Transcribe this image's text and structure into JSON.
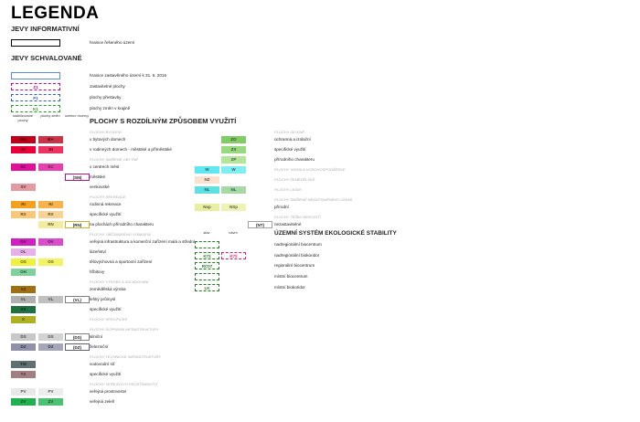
{
  "title": "LEGENDA",
  "informative": {
    "heading": "JEVY INFORMATIVNÍ",
    "items": [
      {
        "label": "hranice řešeného území",
        "color": "#000000",
        "border": "solid"
      }
    ]
  },
  "approved": {
    "heading": "JEVY SCHVALOVANÉ",
    "items": [
      {
        "label": "hranice zastavěného území k 31. 5. 2016",
        "color": "#5b8fd6",
        "border": "solid"
      },
      {
        "code": "Z1",
        "label": "zastavitelné plochy",
        "color": "#d0008a",
        "border": "dashed"
      },
      {
        "code": "P1",
        "label": "plochy přestavby",
        "color": "#3060d0",
        "border": "dashed"
      },
      {
        "code": "K1",
        "label": "plochy změn v krajině",
        "color": "#20a020",
        "border": "dashed"
      }
    ]
  },
  "land_use": {
    "title": "PLOCHY S ROZDÍLNÝM ZPŮSOBEM VYUŽITÍ",
    "columns": [
      "stabilizované plochy",
      "plochy změn",
      "územní rezervy"
    ],
    "left": [
      {
        "heading": "PLOCHY BYDLENÍ"
      },
      {
        "label": "v bytových domech",
        "swatches": [
          {
            "code": "BH",
            "color": "#c0001a"
          },
          {
            "code": "BH",
            "color": "#c0001a"
          },
          null
        ]
      },
      {
        "label": "v rodinných domech - městské a příměstské",
        "swatches": [
          {
            "code": "BI",
            "color": "#e8003a"
          },
          {
            "code": "BI",
            "color": "#e8003a"
          },
          null
        ]
      },
      {
        "heading": "PLOCHY SMÍŠENÉ OBYTNÉ"
      },
      {
        "label": "v centrech měst",
        "swatches": [
          {
            "code": "SC",
            "color": "#e0109a"
          },
          {
            "code": "SC",
            "color": "#e0109a"
          },
          null
        ]
      },
      {
        "label": "městské",
        "swatches": [
          null,
          null,
          {
            "code": "(SM)",
            "color": "#c01080"
          }
        ]
      },
      {
        "label": "venkovské",
        "swatches": [
          {
            "code": "SV",
            "color": "#e39aa0"
          },
          null,
          null
        ]
      },
      {
        "heading": "PLOCHY REKREACE"
      },
      {
        "label": "rodinná rekreace",
        "swatches": [
          {
            "code": "RI",
            "color": "#f5a020"
          },
          {
            "code": "RI",
            "color": "#f5a020"
          },
          null
        ]
      },
      {
        "label": "specifické využití",
        "swatches": [
          {
            "code": "RX",
            "color": "#f8c878"
          },
          {
            "code": "RX",
            "color": "#f8c878"
          },
          null
        ]
      },
      {
        "label": "na plochách přírodního charakteru",
        "swatches": [
          null,
          {
            "code": "RN",
            "color": "#f2e48a"
          },
          {
            "code": "(RN)",
            "color": "#c8b030"
          }
        ]
      },
      {
        "heading": "PLOCHY OBČANSKÉHO VYBAVENÍ"
      },
      {
        "label": "veřejná infrastruktura a komerční zařízení malá a střední",
        "swatches": [
          {
            "code": "OV",
            "color": "#d020c0"
          },
          {
            "code": "OV",
            "color": "#d020c0"
          },
          null
        ]
      },
      {
        "label": "lázeňství",
        "swatches": [
          {
            "code": "OL",
            "color": "#e8b0e8"
          },
          null,
          null
        ]
      },
      {
        "label": "tělovýchovná a sportovní zařízení",
        "swatches": [
          {
            "code": "OS",
            "color": "#f0f040"
          },
          {
            "code": "OS",
            "color": "#f0f040"
          },
          null
        ]
      },
      {
        "label": "hřbitovy",
        "swatches": [
          {
            "code": "OH",
            "color": "#80d0a0"
          },
          null,
          null
        ]
      },
      {
        "heading": "PLOCHY VÝROBY A SKLADOVÁNÍ"
      },
      {
        "label": "zemědělská výroba",
        "swatches": [
          {
            "code": "VZ",
            "color": "#a07010"
          },
          null,
          null
        ]
      },
      {
        "label": "lehký průmysl",
        "swatches": [
          {
            "code": "VL",
            "color": "#b0b0b0"
          },
          {
            "code": "VL",
            "color": "#b0b0b0"
          },
          {
            "code": "(VL)",
            "color": "#808080"
          }
        ]
      },
      {
        "label": "specifické využití",
        "swatches": [
          {
            "code": "VX",
            "color": "#207040"
          },
          null,
          null
        ]
      },
      {
        "heading": "PLOCHY SPECIFICKÉ",
        "swatches": [
          {
            "code": "X",
            "color": "#b0b020"
          },
          null,
          null
        ]
      },
      {
        "heading": "PLOCHY DOPRAVNÍ INFRASTRUKTURY"
      },
      {
        "label": "silniční",
        "swatches": [
          {
            "code": "DS",
            "color": "#c8c8c8"
          },
          {
            "code": "DS",
            "color": "#c8c8c8"
          },
          {
            "code": "(DS)",
            "color": "#808080"
          }
        ]
      },
      {
        "label": "železniční",
        "swatches": [
          {
            "code": "DZ",
            "color": "#9090a8"
          },
          {
            "code": "DZ",
            "color": "#9090a8"
          },
          {
            "code": "(DZ)",
            "color": "#606070"
          }
        ]
      },
      {
        "heading": "PLOCHY TECHNICKÉ INFRASTRUKTURY"
      },
      {
        "label": "vodovodní síť",
        "swatches": [
          {
            "code": "TW",
            "color": "#607070"
          },
          null,
          null
        ]
      },
      {
        "label": "specifické využití",
        "swatches": [
          {
            "code": "TX",
            "color": "#a08080"
          },
          null,
          null
        ]
      },
      {
        "heading": "PLOCHY VEŘEJNÝCH PROSTRANSTVÍ"
      },
      {
        "label": "veřejná prostranství",
        "swatches": [
          {
            "code": "PV",
            "color": "#e8e8e8"
          },
          {
            "code": "PV",
            "color": "#e8e8e8"
          },
          null
        ]
      },
      {
        "label": "veřejná zeleň",
        "swatches": [
          {
            "code": "ZV",
            "color": "#20b050"
          },
          {
            "code": "ZV",
            "color": "#20b050"
          },
          null
        ]
      }
    ],
    "right": [
      {
        "heading": "PLOCHY ZELENĚ"
      },
      {
        "label": "ochranná a izolační",
        "swatches": [
          null,
          {
            "code": "ZO",
            "color": "#60c040"
          },
          null
        ]
      },
      {
        "label": "specifické využití",
        "swatches": [
          null,
          {
            "code": "ZX",
            "color": "#80d060"
          },
          null
        ]
      },
      {
        "label": "přírodního charakteru",
        "swatches": [
          null,
          {
            "code": "ZP",
            "color": "#a0e080"
          },
          null
        ]
      },
      {
        "heading": "PLOCHY VODNÍ A VODOHOSPODÁŘSKÉ",
        "swatches": [
          {
            "code": "W",
            "color": "#60e8f0"
          },
          {
            "code": "W",
            "color": "#60e8f0"
          },
          null
        ]
      },
      {
        "heading": "PLOCHY ZEMĚDĚLSKÉ",
        "swatches": [
          {
            "code": "NZ",
            "color": "#fce0d0"
          },
          null,
          null
        ]
      },
      {
        "heading": "PLOCHY LESNÍ",
        "swatches": [
          {
            "code": "NL",
            "color": "#60e0e0"
          },
          {
            "code": "NL",
            "color": "#90d090"
          },
          null
        ]
      },
      {
        "heading": "PLOCHY SMÍŠENÉ NEZASTAVĚNÉHO ÚZEMÍ"
      },
      {
        "label": "přírodní",
        "swatches": [
          {
            "code": "Nsp",
            "color": "#e8f0a0"
          },
          {
            "code": "NSp",
            "color": "#e8f0a0"
          },
          null
        ]
      },
      {
        "heading": "PLOCHY TĚŽBY NEROSTŮ"
      },
      {
        "label": "nezastavitelné",
        "swatches": [
          null,
          null,
          {
            "code": "(NT)",
            "color": "#a0a0a0"
          }
        ]
      }
    ]
  },
  "uses": {
    "title": "ÚZEMNÍ SYSTÉM EKOLOGICKÉ STABILITY",
    "columns": [
      "stav",
      "návrh"
    ],
    "rows": [
      {
        "label": "nadregionální biocentrum",
        "swatches": [
          {
            "color": "#208020"
          },
          null
        ]
      },
      {
        "label": "nadregionální biokoridor",
        "swatches": [
          {
            "code": "K72",
            "color": "#208020"
          },
          {
            "code": "K72",
            "color": "#e0206a"
          }
        ]
      },
      {
        "label": "regionální biocentrum",
        "swatches": [
          {
            "code": "RC07",
            "color": "#208020"
          },
          null
        ]
      },
      {
        "label": "místní biocentrum",
        "swatches": [
          {
            "color": "#208020"
          },
          null
        ]
      },
      {
        "label": "místní biokoridor",
        "swatches": [
          {
            "code": "LK",
            "color": "#208020"
          },
          null
        ]
      }
    ]
  }
}
